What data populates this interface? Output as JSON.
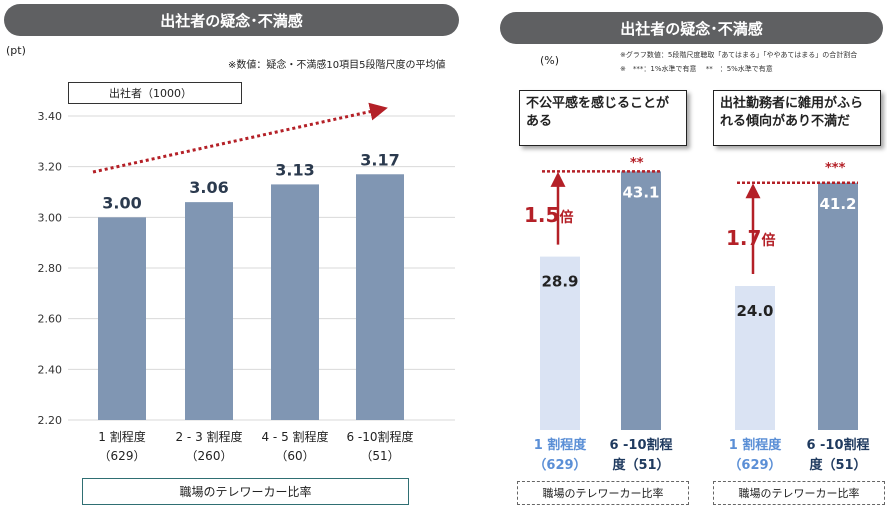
{
  "left": {
    "title": "出社者の疑念･不満感",
    "unit": "(pt)",
    "note": "※数値：疑念・不満感10項目5段階尺度の平均値",
    "series_label": "出社者（1000）",
    "axis_title": "職場のテレワーカー比率"
  },
  "right": {
    "title": "出社者の疑念･不満感",
    "unit": "(%)",
    "note1": "※グラフ数値：5段階尺度聴取「あてはまる」「ややあてはまる」の合計割合",
    "note2": "※　***：1%水準で有意　 **　：5%水準で有意",
    "panel1": {
      "question": "不公平感を感じることがある",
      "multiplier_num": "1.5",
      "multiplier_unit": "倍",
      "sig": "**",
      "axis_title": "職場のテレワーカー比率"
    },
    "panel2": {
      "question": "出社勤務者に雑用がふられる傾向があり不満だ",
      "multiplier_num": "1.7",
      "multiplier_unit": "倍",
      "sig": "***",
      "axis_title": "職場のテレワーカー比率"
    }
  },
  "colors": {
    "bar": "#8096b3",
    "bar_light": "#dae3f3",
    "accent_red": "#b42027",
    "cat_blue": "#5b8fd6",
    "cat_navy": "#1f3a5f",
    "pill": "#5f6062"
  },
  "chart_data": [
    {
      "type": "bar",
      "title": "出社者の疑念･不満感",
      "ylabel": "(pt)",
      "ylim": [
        2.2,
        3.4
      ],
      "yticks": [
        "3.40",
        "3.20",
        "3.00",
        "2.80",
        "2.60",
        "2.40",
        "2.20"
      ],
      "categories": [
        "1 割程度\n（629）",
        "2 - 3 割程度\n（260）",
        "4 - 5 割程度\n（60）",
        "6 -10割程度\n（51）"
      ],
      "series": [
        {
          "name": "出社者（1000）",
          "values": [
            3.0,
            3.06,
            3.13,
            3.17
          ]
        }
      ],
      "data_labels": [
        "3.00",
        "3.06",
        "3.13",
        "3.17"
      ],
      "xlabel": "職場のテレワーカー比率",
      "trend_arrow": true,
      "grid": true
    },
    {
      "type": "bar",
      "title": "不公平感を感じることがある",
      "ylabel": "(%)",
      "categories": [
        "1 割程度\n（629）",
        "6 -10割程\n度（51）"
      ],
      "values": [
        28.9,
        43.1
      ],
      "data_labels": [
        "28.9",
        "43.1"
      ],
      "annotation": "1.5倍",
      "significance": "**",
      "xlabel": "職場のテレワーカー比率"
    },
    {
      "type": "bar",
      "title": "出社勤務者に雑用がふられる傾向があり不満だ",
      "ylabel": "(%)",
      "categories": [
        "1 割程度\n（629）",
        "6 -10割程\n度（51）"
      ],
      "values": [
        24.0,
        41.2
      ],
      "data_labels": [
        "24.0",
        "41.2"
      ],
      "annotation": "1.7倍",
      "significance": "***",
      "xlabel": "職場のテレワーカー比率"
    }
  ]
}
